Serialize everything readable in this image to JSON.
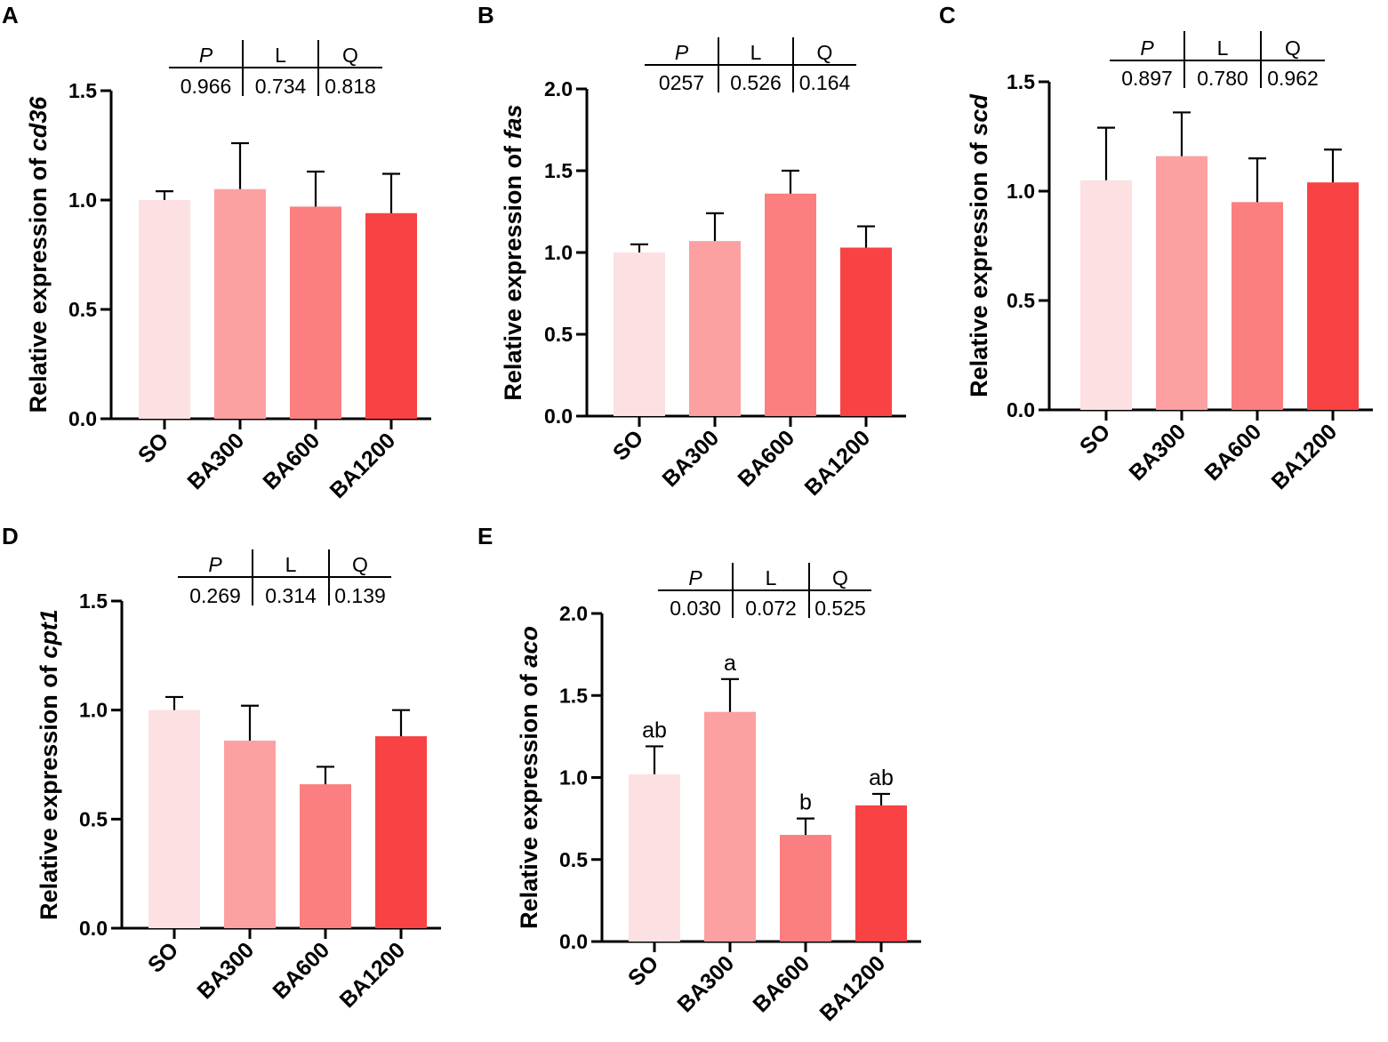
{
  "figure": {
    "bar_colors": [
      "#fde0e2",
      "#fca0a2",
      "#fb7f80",
      "#f84244"
    ],
    "axis_title_prefix": "Relative expression of "
  },
  "chart_data": [
    {
      "panel": "A",
      "type": "bar",
      "gene": "cd36",
      "ylabel": "Relative expression of cd36",
      "categories": [
        "SO",
        "BA300",
        "BA600",
        "BA1200"
      ],
      "values": [
        1.0,
        1.05,
        0.97,
        0.94
      ],
      "errors": [
        0.04,
        0.21,
        0.16,
        0.18
      ],
      "significance": [
        "",
        "",
        "",
        ""
      ],
      "ylim": [
        0,
        1.5
      ],
      "yticks": [
        "0.0",
        "0.5",
        "1.0",
        "1.5"
      ],
      "stats": {
        "headers": [
          "P",
          "L",
          "Q"
        ],
        "values": [
          "0.966",
          "0.734",
          "0.818"
        ]
      }
    },
    {
      "panel": "B",
      "type": "bar",
      "gene": "fas",
      "ylabel": "Relative expression of fas",
      "categories": [
        "SO",
        "BA300",
        "BA600",
        "BA1200"
      ],
      "values": [
        1.0,
        1.07,
        1.36,
        1.03
      ],
      "errors": [
        0.05,
        0.17,
        0.14,
        0.13
      ],
      "significance": [
        "",
        "",
        "",
        ""
      ],
      "ylim": [
        0,
        2.0
      ],
      "yticks": [
        "0.0",
        "0.5",
        "1.0",
        "1.5",
        "2.0"
      ],
      "stats": {
        "headers": [
          "P",
          "L",
          "Q"
        ],
        "values": [
          "0257",
          "0.526",
          "0.164"
        ]
      }
    },
    {
      "panel": "C",
      "type": "bar",
      "gene": "scd",
      "ylabel": "Relative expression of scd",
      "categories": [
        "SO",
        "BA300",
        "BA600",
        "BA1200"
      ],
      "values": [
        1.05,
        1.16,
        0.95,
        1.04
      ],
      "errors": [
        0.24,
        0.2,
        0.2,
        0.15
      ],
      "significance": [
        "",
        "",
        "",
        ""
      ],
      "ylim": [
        0,
        1.5
      ],
      "yticks": [
        "0.0",
        "0.5",
        "1.0",
        "1.5"
      ],
      "stats": {
        "headers": [
          "P",
          "L",
          "Q"
        ],
        "values": [
          "0.897",
          "0.780",
          "0.962"
        ]
      }
    },
    {
      "panel": "D",
      "type": "bar",
      "gene": "cpt1",
      "ylabel": "Relative expression of cpt1",
      "categories": [
        "SO",
        "BA300",
        "BA600",
        "BA1200"
      ],
      "values": [
        1.0,
        0.86,
        0.66,
        0.88
      ],
      "errors": [
        0.06,
        0.16,
        0.08,
        0.12
      ],
      "significance": [
        "",
        "",
        "",
        ""
      ],
      "ylim": [
        0,
        1.5
      ],
      "yticks": [
        "0.0",
        "0.5",
        "1.0",
        "1.5"
      ],
      "stats": {
        "headers": [
          "P",
          "L",
          "Q"
        ],
        "values": [
          "0.269",
          "0.314",
          "0.139"
        ]
      }
    },
    {
      "panel": "E",
      "type": "bar",
      "gene": "aco",
      "ylabel": "Relative expression of aco",
      "categories": [
        "SO",
        "BA300",
        "BA600",
        "BA1200"
      ],
      "values": [
        1.02,
        1.4,
        0.65,
        0.83
      ],
      "errors": [
        0.17,
        0.2,
        0.1,
        0.07
      ],
      "significance": [
        "ab",
        "a",
        "b",
        "ab"
      ],
      "ylim": [
        0,
        2.0
      ],
      "yticks": [
        "0.0",
        "0.5",
        "1.0",
        "1.5",
        "2.0"
      ],
      "stats": {
        "headers": [
          "P",
          "L",
          "Q"
        ],
        "values": [
          "0.030",
          "0.072",
          "0.525"
        ]
      }
    }
  ]
}
